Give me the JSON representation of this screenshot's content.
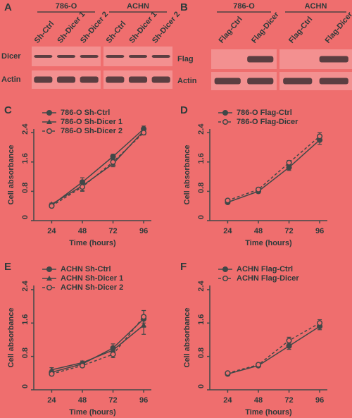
{
  "blots": [
    {
      "label": "A",
      "groups": [
        {
          "name": "786-O",
          "lanes": [
            "Sh-Ctrl",
            "Sh-Dicer 1",
            "Sh-Dicer 2"
          ]
        },
        {
          "name": "ACHN",
          "lanes": [
            "Sh-Ctrl",
            "Sh-Dicer 1",
            "Sh-Dicer 2"
          ]
        }
      ],
      "rows": [
        "Dicer",
        "Actin"
      ]
    },
    {
      "label": "B",
      "groups": [
        {
          "name": "786-O",
          "lanes": [
            "Flag-Ctrl",
            "Flag-Dicer"
          ]
        },
        {
          "name": "ACHN",
          "lanes": [
            "Flag-Ctrl",
            "Flag-Dicer"
          ]
        }
      ],
      "rows": [
        "Flag",
        "Actin"
      ]
    }
  ],
  "chart_data": [
    {
      "type": "line",
      "label": "C",
      "xlabel": "Time (hours)",
      "ylabel": "Cell absorbance",
      "x": [
        24,
        48,
        72,
        96
      ],
      "xlim": [
        10,
        102
      ],
      "xticks": [
        24,
        48,
        72,
        96
      ],
      "ylim": [
        0,
        2.5
      ],
      "yticks": [
        0,
        0.8,
        1.6,
        2.4
      ],
      "legend": "upper left",
      "series": [
        {
          "name": "786-O Sh-Ctrl",
          "color": "#404848",
          "marker": "circle",
          "dashed": false,
          "values": [
            0.42,
            1.05,
            1.75,
            2.5
          ],
          "errors": [
            0.03,
            0.12,
            0.06,
            0.08
          ]
        },
        {
          "name": "786-O Sh-Dicer 1",
          "color": "#404848",
          "marker": "triangle",
          "dashed": false,
          "values": [
            0.45,
            0.95,
            1.55,
            2.45
          ],
          "errors": [
            0.03,
            0.15,
            0.08,
            0.06
          ]
        },
        {
          "name": "786-O Sh-Dicer 2",
          "color": "#404848",
          "marker": "open-circle",
          "dashed": true,
          "values": [
            0.4,
            0.92,
            1.6,
            2.4
          ],
          "errors": [
            0.03,
            0.1,
            0.07,
            0.06
          ]
        }
      ]
    },
    {
      "type": "line",
      "label": "D",
      "xlabel": "Time (hours)",
      "ylabel": "Cell absorbance",
      "x": [
        24,
        48,
        72,
        96
      ],
      "xlim": [
        10,
        102
      ],
      "xticks": [
        24,
        48,
        72,
        96
      ],
      "ylim": [
        0,
        2.5
      ],
      "yticks": [
        0,
        0.8,
        1.6,
        2.4
      ],
      "legend": "upper left",
      "series": [
        {
          "name": "786-O Flag-Ctrl",
          "color": "#404848",
          "marker": "circle",
          "dashed": false,
          "values": [
            0.5,
            0.8,
            1.45,
            2.2
          ],
          "errors": [
            0.03,
            0.05,
            0.08,
            0.12
          ]
        },
        {
          "name": "786-O Flag-Dicer",
          "color": "#404848",
          "marker": "open-circle",
          "dashed": true,
          "values": [
            0.55,
            0.85,
            1.58,
            2.3
          ],
          "errors": [
            0.03,
            0.04,
            0.06,
            0.1
          ]
        }
      ]
    },
    {
      "type": "line",
      "label": "E",
      "xlabel": "Time (hours)",
      "ylabel": "Cell absorbance",
      "x": [
        24,
        48,
        72,
        96
      ],
      "xlim": [
        10,
        102
      ],
      "xticks": [
        24,
        48,
        72,
        96
      ],
      "ylim": [
        0,
        2.5
      ],
      "yticks": [
        0,
        0.8,
        1.6,
        2.4
      ],
      "legend": "upper left",
      "series": [
        {
          "name": "ACHN Sh-Ctrl",
          "color": "#404848",
          "marker": "circle",
          "dashed": false,
          "values": [
            0.42,
            0.62,
            1.0,
            1.7
          ],
          "errors": [
            0.05,
            0.04,
            0.1,
            0.2
          ]
        },
        {
          "name": "ACHN Sh-Dicer 1",
          "color": "#404848",
          "marker": "triangle",
          "dashed": false,
          "values": [
            0.48,
            0.65,
            0.95,
            1.55
          ],
          "errors": [
            0.05,
            0.04,
            0.08,
            0.22
          ]
        },
        {
          "name": "ACHN Sh-Dicer 2",
          "color": "#404848",
          "marker": "open-circle",
          "dashed": true,
          "values": [
            0.38,
            0.58,
            0.85,
            1.75
          ],
          "errors": [
            0.04,
            0.04,
            0.08,
            0.15
          ]
        }
      ]
    },
    {
      "type": "line",
      "label": "F",
      "xlabel": "Time (hours)",
      "ylabel": "Cell absorbance",
      "x": [
        24,
        48,
        72,
        96
      ],
      "xlim": [
        10,
        102
      ],
      "xticks": [
        24,
        48,
        72,
        96
      ],
      "ylim": [
        0,
        2.5
      ],
      "yticks": [
        0,
        0.8,
        1.6,
        2.4
      ],
      "legend": "upper left",
      "series": [
        {
          "name": "ACHN Flag-Ctrl",
          "color": "#404848",
          "marker": "circle",
          "dashed": false,
          "values": [
            0.38,
            0.58,
            1.05,
            1.52
          ],
          "errors": [
            0.03,
            0.03,
            0.08,
            0.08
          ]
        },
        {
          "name": "ACHN Flag-Dicer",
          "color": "#404848",
          "marker": "open-circle",
          "dashed": true,
          "values": [
            0.4,
            0.6,
            1.18,
            1.6
          ],
          "errors": [
            0.03,
            0.03,
            0.08,
            0.08
          ]
        }
      ]
    }
  ]
}
